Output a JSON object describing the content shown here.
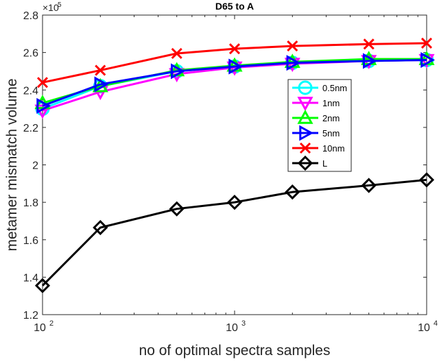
{
  "chart_data": {
    "type": "line",
    "title": "D65 to A",
    "xlabel": "no of optimal spectra samples",
    "ylabel": "metamer mismatch volume",
    "y_multiplier_label": "×10",
    "y_multiplier_exp": "5",
    "xscale": "log",
    "xlim": [
      100,
      10000
    ],
    "ylim": [
      1.2,
      2.8
    ],
    "x_ticks": [
      {
        "value": 100,
        "base": "10",
        "exp": "2"
      },
      {
        "value": 1000,
        "base": "10",
        "exp": "3"
      },
      {
        "value": 10000,
        "base": "10",
        "exp": "4"
      }
    ],
    "y_ticks": [
      "1.2",
      "1.4",
      "1.6",
      "1.8",
      "2",
      "2.2",
      "2.4",
      "2.6",
      "2.8"
    ],
    "grid": false,
    "legend_placement": "center-right",
    "x": [
      100,
      200,
      500,
      1000,
      2000,
      5000,
      10000
    ],
    "series": [
      {
        "name": "0.5nm",
        "color": "#00ffff",
        "marker": "circle",
        "values": [
          2.3,
          2.42,
          2.5,
          2.525,
          2.545,
          2.555,
          2.56
        ]
      },
      {
        "name": "1nm",
        "color": "#ff00ff",
        "marker": "triangle-down",
        "values": [
          2.29,
          2.39,
          2.485,
          2.52,
          2.54,
          2.555,
          2.56
        ]
      },
      {
        "name": "2nm",
        "color": "#00ff00",
        "marker": "triangle-up",
        "values": [
          2.33,
          2.42,
          2.505,
          2.53,
          2.55,
          2.565,
          2.565
        ]
      },
      {
        "name": "5nm",
        "color": "#0000ff",
        "marker": "triangle-right",
        "values": [
          2.315,
          2.43,
          2.5,
          2.525,
          2.545,
          2.555,
          2.56
        ]
      },
      {
        "name": "10nm",
        "color": "#ff0000",
        "marker": "x",
        "values": [
          2.44,
          2.505,
          2.595,
          2.62,
          2.635,
          2.645,
          2.65
        ]
      },
      {
        "name": "L",
        "color": "#000000",
        "marker": "diamond",
        "values": [
          1.355,
          1.665,
          1.765,
          1.8,
          1.855,
          1.89,
          1.92
        ]
      }
    ]
  }
}
